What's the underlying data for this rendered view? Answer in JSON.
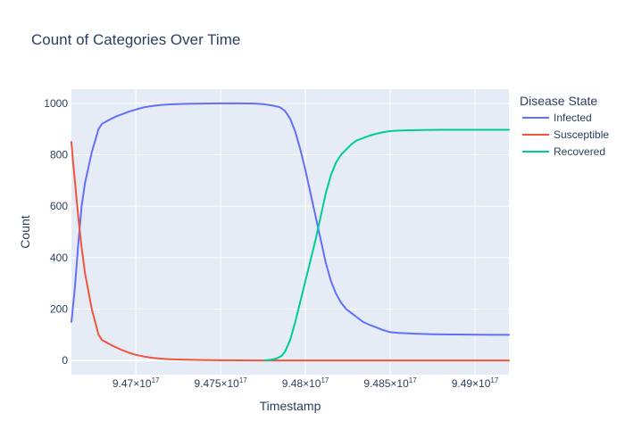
{
  "chart_data": {
    "type": "line",
    "title": "Count of Categories Over Time",
    "xlabel": "Timestamp",
    "ylabel": "Count",
    "legend_title": "Disease State",
    "legend_position": "right",
    "grid": true,
    "colors": {
      "plot_bg": "#e5ecf6",
      "grid": "#ffffff"
    },
    "xlim": [
      946620000000000000,
      949200000000000000
    ],
    "ylim": [
      -55,
      1055
    ],
    "x_ticks": [
      {
        "value": 947000000000000000,
        "mantissa": "9.47",
        "exp": "17"
      },
      {
        "value": 947500000000000000,
        "mantissa": "9.475",
        "exp": "17"
      },
      {
        "value": 948000000000000000,
        "mantissa": "9.48",
        "exp": "17"
      },
      {
        "value": 948500000000000000,
        "mantissa": "9.485",
        "exp": "17"
      },
      {
        "value": 949000000000000000,
        "mantissa": "9.49",
        "exp": "17"
      }
    ],
    "x_tick_times10": "×10",
    "y_ticks": [
      0,
      200,
      400,
      600,
      800,
      1000
    ],
    "series": [
      {
        "name": "Infected",
        "color": "#636efa",
        "points": [
          [
            946620000000000000,
            150
          ],
          [
            946640000000000000,
            280
          ],
          [
            946660000000000000,
            450
          ],
          [
            946680000000000000,
            600
          ],
          [
            946700000000000000,
            690
          ],
          [
            946720000000000000,
            750
          ],
          [
            946740000000000000,
            810
          ],
          [
            946760000000000000,
            855
          ],
          [
            946780000000000000,
            900
          ],
          [
            946800000000000000,
            920
          ],
          [
            946840000000000000,
            935
          ],
          [
            946880000000000000,
            948
          ],
          [
            946920000000000000,
            958
          ],
          [
            946960000000000000,
            968
          ],
          [
            947000000000000000,
            976
          ],
          [
            947050000000000000,
            985
          ],
          [
            947100000000000000,
            990
          ],
          [
            947150000000000000,
            994
          ],
          [
            947200000000000000,
            996
          ],
          [
            947300000000000000,
            998
          ],
          [
            947400000000000000,
            999
          ],
          [
            947500000000000000,
            1000
          ],
          [
            947600000000000000,
            1000
          ],
          [
            947700000000000000,
            999
          ],
          [
            947750000000000000,
            997
          ],
          [
            947800000000000000,
            992
          ],
          [
            947850000000000000,
            985
          ],
          [
            947880000000000000,
            970
          ],
          [
            947910000000000000,
            940
          ],
          [
            947940000000000000,
            890
          ],
          [
            947970000000000000,
            820
          ],
          [
            948000000000000000,
            740
          ],
          [
            948030000000000000,
            650
          ],
          [
            948060000000000000,
            560
          ],
          [
            948090000000000000,
            470
          ],
          [
            948120000000000000,
            380
          ],
          [
            948150000000000000,
            310
          ],
          [
            948180000000000000,
            260
          ],
          [
            948210000000000000,
            225
          ],
          [
            948240000000000000,
            200
          ],
          [
            948270000000000000,
            185
          ],
          [
            948300000000000000,
            170
          ],
          [
            948340000000000000,
            150
          ],
          [
            948380000000000000,
            138
          ],
          [
            948420000000000000,
            128
          ],
          [
            948460000000000000,
            118
          ],
          [
            948500000000000000,
            110
          ],
          [
            948550000000000000,
            107
          ],
          [
            948650000000000000,
            104
          ],
          [
            948750000000000000,
            102
          ],
          [
            948900000000000000,
            101
          ],
          [
            949100000000000000,
            100
          ],
          [
            949200000000000000,
            100
          ]
        ]
      },
      {
        "name": "Susceptible",
        "color": "#ef553b",
        "points": [
          [
            946620000000000000,
            850
          ],
          [
            946630000000000000,
            770
          ],
          [
            946640000000000000,
            700
          ],
          [
            946660000000000000,
            560
          ],
          [
            946680000000000000,
            440
          ],
          [
            946700000000000000,
            340
          ],
          [
            946720000000000000,
            270
          ],
          [
            946740000000000000,
            200
          ],
          [
            946760000000000000,
            150
          ],
          [
            946780000000000000,
            100
          ],
          [
            946800000000000000,
            80
          ],
          [
            946840000000000000,
            65
          ],
          [
            946880000000000000,
            52
          ],
          [
            946920000000000000,
            40
          ],
          [
            946960000000000000,
            30
          ],
          [
            947000000000000000,
            22
          ],
          [
            947050000000000000,
            15
          ],
          [
            947100000000000000,
            10
          ],
          [
            947150000000000000,
            7
          ],
          [
            947200000000000000,
            5
          ],
          [
            947300000000000000,
            3
          ],
          [
            947400000000000000,
            2
          ],
          [
            947500000000000000,
            1
          ],
          [
            947700000000000000,
            0
          ],
          [
            948000000000000000,
            0
          ],
          [
            948500000000000000,
            0
          ],
          [
            949200000000000000,
            0
          ]
        ]
      },
      {
        "name": "Recovered",
        "color": "#00cc96",
        "points": [
          [
            947760000000000000,
            0
          ],
          [
            947800000000000000,
            3
          ],
          [
            947830000000000000,
            8
          ],
          [
            947860000000000000,
            18
          ],
          [
            947880000000000000,
            35
          ],
          [
            947910000000000000,
            80
          ],
          [
            947940000000000000,
            150
          ],
          [
            947970000000000000,
            230
          ],
          [
            948000000000000000,
            310
          ],
          [
            948030000000000000,
            390
          ],
          [
            948060000000000000,
            470
          ],
          [
            948090000000000000,
            560
          ],
          [
            948120000000000000,
            650
          ],
          [
            948150000000000000,
            720
          ],
          [
            948180000000000000,
            770
          ],
          [
            948210000000000000,
            800
          ],
          [
            948240000000000000,
            820
          ],
          [
            948270000000000000,
            840
          ],
          [
            948300000000000000,
            855
          ],
          [
            948340000000000000,
            865
          ],
          [
            948380000000000000,
            875
          ],
          [
            948420000000000000,
            882
          ],
          [
            948460000000000000,
            888
          ],
          [
            948500000000000000,
            892
          ],
          [
            948550000000000000,
            894
          ],
          [
            948650000000000000,
            896
          ],
          [
            948800000000000000,
            897
          ],
          [
            949000000000000000,
            897
          ],
          [
            949200000000000000,
            897
          ]
        ]
      }
    ]
  }
}
